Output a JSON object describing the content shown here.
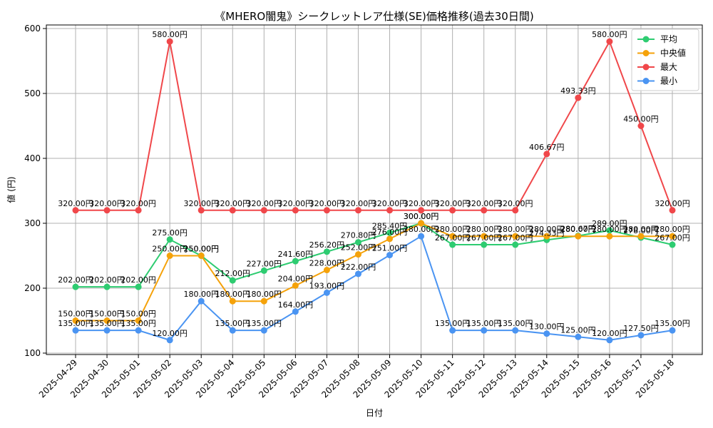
{
  "chart_data": {
    "type": "line",
    "title": "《MHERO闇鬼》シークレットレア仕様(SE)価格推移(過去30日間)",
    "xlabel": "日付",
    "ylabel": "値 (円)",
    "ylim": [
      100,
      600
    ],
    "yticks": [
      100,
      200,
      300,
      400,
      500,
      600
    ],
    "grid": true,
    "legend_position": "top-right",
    "label_suffix": "円",
    "categories": [
      "2025-04-29",
      "2025-04-30",
      "2025-05-01",
      "2025-05-02",
      "2025-05-03",
      "2025-05-04",
      "2025-05-05",
      "2025-05-06",
      "2025-05-07",
      "2025-05-08",
      "2025-05-09",
      "2025-05-10",
      "2025-05-11",
      "2025-05-12",
      "2025-05-13",
      "2025-05-14",
      "2025-05-15",
      "2025-05-16",
      "2025-05-17",
      "2025-05-18"
    ],
    "series": [
      {
        "name": "平均",
        "color": "#2ecc71",
        "values": [
          202,
          202,
          202,
          275,
          250,
          212,
          227,
          241.6,
          256.2,
          270.8,
          285.4,
          300,
          267,
          267,
          267,
          274.33,
          280.67,
          289,
          278,
          267
        ]
      },
      {
        "name": "中央値",
        "color": "#f5a20a",
        "values": [
          150,
          150,
          150,
          250,
          250,
          180,
          180,
          204,
          228,
          252,
          276,
          300,
          280,
          280,
          280,
          280,
          280,
          280,
          280,
          280
        ]
      },
      {
        "name": "最大",
        "color": "#f0474a",
        "values": [
          320,
          320,
          320,
          580,
          320,
          320,
          320,
          320,
          320,
          320,
          320,
          320,
          320,
          320,
          320,
          406.67,
          493.33,
          580,
          450,
          320
        ]
      },
      {
        "name": "最小",
        "color": "#4a94f2",
        "values": [
          135,
          135,
          135,
          120,
          180,
          135,
          135,
          164,
          193,
          222,
          251,
          280,
          135,
          135,
          135,
          130,
          125,
          120,
          127.5,
          135
        ]
      }
    ]
  }
}
